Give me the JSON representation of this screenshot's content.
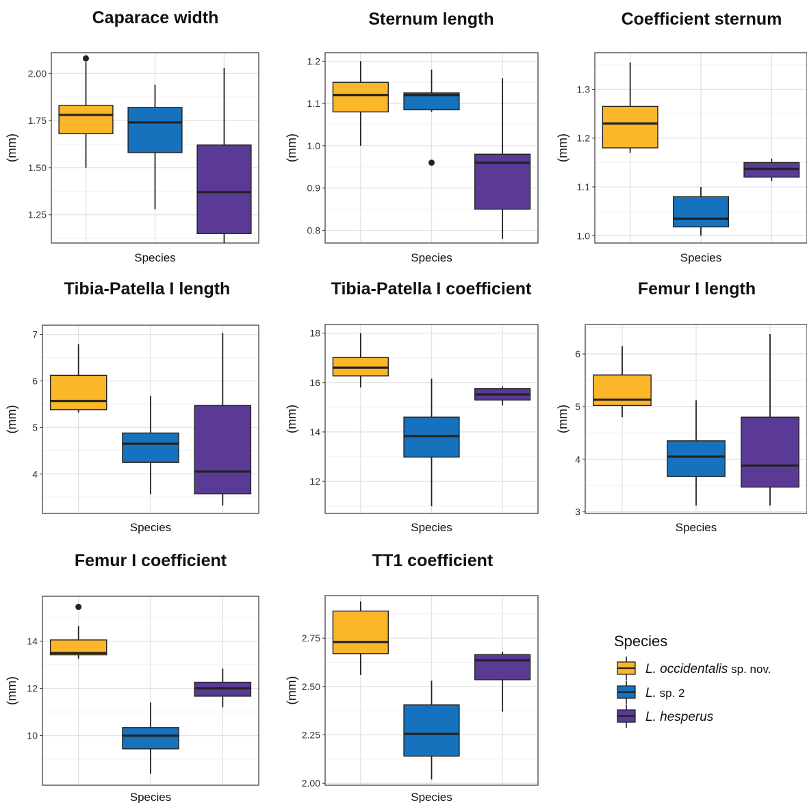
{
  "colors": {
    "L. occidentalis sp. nov.": "#FBB629",
    "L. sp. 2": "#1672BD",
    "L. hesperus": "#5A3A95"
  },
  "legend": {
    "title": "Species",
    "items": [
      {
        "key": "L. occidentalis sp. nov.",
        "italic": "L. occidentalis",
        "suffix": " sp. nov."
      },
      {
        "key": "L. sp. 2",
        "italic": "L.",
        "suffix": " sp. 2"
      },
      {
        "key": "L. hesperus",
        "italic": "L. hesperus",
        "suffix": ""
      }
    ]
  },
  "chart_data": [
    {
      "type": "box",
      "title": "Caparace width",
      "xlabel": "Species",
      "ylabel": "(mm)",
      "ylim": [
        1.1,
        2.11
      ],
      "yticks": [
        1.25,
        1.5,
        1.75,
        2.0
      ],
      "ytick_labels": [
        "1.25",
        "1.50",
        "1.75",
        "2.00"
      ],
      "grid": true,
      "boxes": [
        {
          "species": "L. occidentalis sp. nov.",
          "min": 1.5,
          "q1": 1.68,
          "median": 1.78,
          "q3": 1.83,
          "max": 2.06,
          "outliers": [
            2.08
          ]
        },
        {
          "species": "L. sp. 2",
          "min": 1.28,
          "q1": 1.58,
          "median": 1.74,
          "q3": 1.82,
          "max": 1.94,
          "outliers": []
        },
        {
          "species": "L. hesperus",
          "min": 1.1,
          "q1": 1.15,
          "median": 1.37,
          "q3": 1.62,
          "max": 2.03,
          "outliers": []
        }
      ]
    },
    {
      "type": "box",
      "title": "Sternum length",
      "xlabel": "Species",
      "ylabel": "(mm)",
      "ylim": [
        0.77,
        1.22
      ],
      "yticks": [
        0.8,
        0.9,
        1.0,
        1.1,
        1.2
      ],
      "ytick_labels": [
        "0.8",
        "0.9",
        "1.0",
        "1.1",
        "1.2"
      ],
      "grid": true,
      "boxes": [
        {
          "species": "L. occidentalis sp. nov.",
          "min": 1.0,
          "q1": 1.08,
          "median": 1.12,
          "q3": 1.15,
          "max": 1.2,
          "outliers": []
        },
        {
          "species": "L. sp. 2",
          "min": 1.08,
          "q1": 1.085,
          "median": 1.12,
          "q3": 1.125,
          "max": 1.18,
          "outliers": [
            0.96
          ]
        },
        {
          "species": "L. hesperus",
          "min": 0.78,
          "q1": 0.85,
          "median": 0.96,
          "q3": 0.98,
          "max": 1.16,
          "outliers": []
        }
      ]
    },
    {
      "type": "box",
      "title": "Coefficient sternum",
      "xlabel": "Species",
      "ylabel": "(mm)",
      "ylim": [
        0.985,
        1.375
      ],
      "yticks": [
        1.0,
        1.1,
        1.2,
        1.3
      ],
      "ytick_labels": [
        "1.0",
        "1.1",
        "1.2",
        "1.3"
      ],
      "grid": true,
      "boxes": [
        {
          "species": "L. occidentalis sp. nov.",
          "min": 1.17,
          "q1": 1.18,
          "median": 1.23,
          "q3": 1.265,
          "max": 1.355,
          "outliers": []
        },
        {
          "species": "L. sp. 2",
          "min": 1.0,
          "q1": 1.018,
          "median": 1.035,
          "q3": 1.08,
          "max": 1.1,
          "outliers": []
        },
        {
          "species": "L. hesperus",
          "min": 1.112,
          "q1": 1.12,
          "median": 1.137,
          "q3": 1.15,
          "max": 1.158,
          "outliers": []
        }
      ]
    },
    {
      "type": "box",
      "title": "Tibia-Patella I length",
      "xlabel": "Species",
      "ylabel": "(mm)",
      "ylim": [
        3.15,
        7.2
      ],
      "yticks": [
        4,
        5,
        6,
        7
      ],
      "ytick_labels": [
        "4",
        "5",
        "6",
        "7"
      ],
      "grid": true,
      "boxes": [
        {
          "species": "L. occidentalis sp. nov.",
          "min": 5.32,
          "q1": 5.38,
          "median": 5.57,
          "q3": 6.12,
          "max": 6.79,
          "outliers": []
        },
        {
          "species": "L. sp. 2",
          "min": 3.56,
          "q1": 4.25,
          "median": 4.65,
          "q3": 4.88,
          "max": 5.68,
          "outliers": []
        },
        {
          "species": "L. hesperus",
          "min": 3.32,
          "q1": 3.57,
          "median": 4.05,
          "q3": 5.47,
          "max": 7.03,
          "outliers": []
        }
      ]
    },
    {
      "type": "box",
      "title": "Tibia-Patella I coefficient",
      "xlabel": "Species",
      "ylabel": "(mm)",
      "ylim": [
        10.7,
        18.35
      ],
      "yticks": [
        12,
        14,
        16,
        18
      ],
      "ytick_labels": [
        "12",
        "14",
        "16",
        "18"
      ],
      "grid": true,
      "boxes": [
        {
          "species": "L. occidentalis sp. nov.",
          "min": 15.8,
          "q1": 16.27,
          "median": 16.6,
          "q3": 17.01,
          "max": 18.0,
          "outliers": []
        },
        {
          "species": "L. sp. 2",
          "min": 11.0,
          "q1": 12.98,
          "median": 13.83,
          "q3": 14.6,
          "max": 16.16,
          "outliers": []
        },
        {
          "species": "L. hesperus",
          "min": 15.07,
          "q1": 15.29,
          "median": 15.52,
          "q3": 15.75,
          "max": 15.84,
          "outliers": []
        }
      ]
    },
    {
      "type": "box",
      "title": "Femur I length",
      "xlabel": "Species",
      "ylabel": "(mm)",
      "ylim": [
        2.97,
        6.56
      ],
      "yticks": [
        3,
        4,
        5,
        6
      ],
      "ytick_labels": [
        "3",
        "4",
        "5",
        "6"
      ],
      "grid": true,
      "boxes": [
        {
          "species": "L. occidentalis sp. nov.",
          "min": 4.8,
          "q1": 5.02,
          "median": 5.13,
          "q3": 5.6,
          "max": 6.15,
          "outliers": []
        },
        {
          "species": "L. sp. 2",
          "min": 3.12,
          "q1": 3.67,
          "median": 4.05,
          "q3": 4.35,
          "max": 5.12,
          "outliers": []
        },
        {
          "species": "L. hesperus",
          "min": 3.12,
          "q1": 3.47,
          "median": 3.88,
          "q3": 4.8,
          "max": 6.38,
          "outliers": []
        }
      ]
    },
    {
      "type": "box",
      "title": "Femur I coefficient",
      "xlabel": "Species",
      "ylabel": "(mm)",
      "ylim": [
        7.9,
        15.9
      ],
      "yticks": [
        10,
        12,
        14
      ],
      "ytick_labels": [
        "10",
        "12",
        "14"
      ],
      "grid": true,
      "boxes": [
        {
          "species": "L. occidentalis sp. nov.",
          "min": 13.25,
          "q1": 13.42,
          "median": 13.5,
          "q3": 14.05,
          "max": 14.64,
          "outliers": [
            15.45
          ]
        },
        {
          "species": "L. sp. 2",
          "min": 8.38,
          "q1": 9.44,
          "median": 10.0,
          "q3": 10.34,
          "max": 11.4,
          "outliers": []
        },
        {
          "species": "L. hesperus",
          "min": 11.2,
          "q1": 11.67,
          "median": 12.0,
          "q3": 12.26,
          "max": 12.84,
          "outliers": []
        }
      ]
    },
    {
      "type": "box",
      "title": "TT1 coefficient",
      "xlabel": "Species",
      "ylabel": "(mm)",
      "ylim": [
        1.99,
        2.97
      ],
      "yticks": [
        2.0,
        2.25,
        2.5,
        2.75
      ],
      "ytick_labels": [
        "2.00",
        "2.25",
        "2.50",
        "2.75"
      ],
      "grid": true,
      "boxes": [
        {
          "species": "L. occidentalis sp. nov.",
          "min": 2.56,
          "q1": 2.67,
          "median": 2.73,
          "q3": 2.89,
          "max": 2.94,
          "outliers": []
        },
        {
          "species": "L. sp. 2",
          "min": 2.02,
          "q1": 2.14,
          "median": 2.255,
          "q3": 2.405,
          "max": 2.53,
          "outliers": []
        },
        {
          "species": "L. hesperus",
          "min": 2.37,
          "q1": 2.535,
          "median": 2.635,
          "q3": 2.665,
          "max": 2.68,
          "outliers": []
        }
      ]
    }
  ]
}
